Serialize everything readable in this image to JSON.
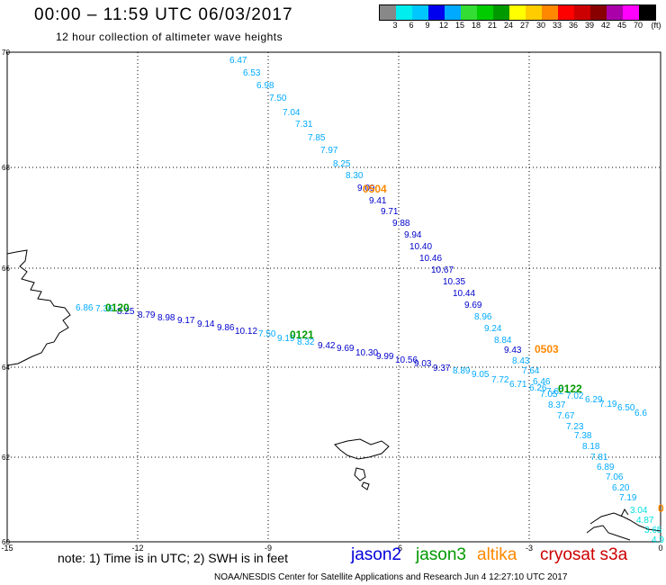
{
  "header": {
    "title": "00:00 – 11:59 UTC 06/03/2017",
    "subtitle": "12 hour collection of altimeter wave heights"
  },
  "legend": {
    "unit": "(ft)",
    "colors": [
      "#888888",
      "#00eeee",
      "#00c8ff",
      "#0000ee",
      "#00aaff",
      "#33dd33",
      "#00cc00",
      "#009900",
      "#ffff00",
      "#ffcc00",
      "#ff8800",
      "#ff0000",
      "#cc0000",
      "#880000",
      "#aa00aa",
      "#ff00ff",
      "#000000"
    ],
    "labels": [
      "3",
      "6",
      "9",
      "12",
      "15",
      "18",
      "21",
      "24",
      "27",
      "30",
      "33",
      "36",
      "39",
      "42",
      "45",
      "70"
    ]
  },
  "map": {
    "y_ticks": [
      "70",
      "68",
      "66",
      "64",
      "62",
      "60"
    ],
    "x_ticks": [
      "-15",
      "-12",
      "-9",
      "-6",
      "-3",
      "0"
    ],
    "tracks": [
      {
        "color": "#00aaff",
        "values": [
          "6.47",
          "6.53",
          "6.98",
          "7.50",
          "7.04",
          "7.31",
          "7.85",
          "7.97",
          "8.25",
          "8.30"
        ]
      },
      {
        "color": "#0000cc",
        "values": [
          "9.09",
          "9.41",
          "9.71",
          "9.88",
          "9.94",
          "10.40",
          "10.46",
          "10.67",
          "10.35",
          "10.44",
          "9.69"
        ]
      },
      {
        "color": "#00aaff",
        "values": [
          "8.96",
          "9.24",
          "8.84"
        ]
      },
      {
        "color": "#0000cc",
        "values": [
          "9.43"
        ]
      },
      {
        "color": "#00aaff",
        "values": [
          "8.43",
          "7.64",
          "6.46",
          "7.05",
          "8.37",
          "7.67",
          "7.23",
          "7.38",
          "8.18",
          "7.81",
          "6.89",
          "7.06",
          "6.20",
          "7.19"
        ]
      },
      {
        "color": "#00e0e0",
        "values": [
          "3.04",
          "4.87",
          "3.65",
          "4.9"
        ]
      },
      {
        "color": "#00aaff",
        "values": [
          "6.86",
          "7.36"
        ]
      },
      {
        "color": "#0000cc",
        "values": [
          "8.25",
          "8.79",
          "8.98",
          "9.17",
          "9.14",
          "9.86",
          "10.12"
        ]
      },
      {
        "color": "#00aaff",
        "values": [
          "7.50",
          "9.19",
          "8.32"
        ]
      },
      {
        "color": "#0000cc",
        "values": [
          "9.42",
          "9.69",
          "10.30",
          "9.99",
          "10.56",
          "9.03",
          "9.37"
        ]
      },
      {
        "color": "#00aaff",
        "values": [
          "8.89",
          "9.05",
          "7.72",
          "6.71",
          "6.26",
          "7.62",
          "7.02",
          "6.29",
          "7.19",
          "6.50",
          "6.6"
        ]
      }
    ],
    "time_labels": [
      {
        "text": "0504",
        "color": "#ff8800"
      },
      {
        "text": "0503",
        "color": "#ff8800"
      },
      {
        "text": "0120",
        "color": "#009900"
      },
      {
        "text": "0121",
        "color": "#009900"
      },
      {
        "text": "0122",
        "color": "#009900"
      },
      {
        "text": "0",
        "color": "#ff8800"
      }
    ]
  },
  "notes": {
    "text": "note:  1) Time is in UTC;  2) SWH is in feet",
    "satellites": [
      {
        "name": "jason2",
        "color": "#0000dd"
      },
      {
        "name": "jason3",
        "color": "#009900"
      },
      {
        "name": "altika",
        "color": "#ff8800"
      },
      {
        "name": "cryosat s3a",
        "color": "#cc0000"
      }
    ]
  },
  "footer": "NOAA/NESDIS Center for Satellite Applications and Research    Jun  4 12:27:10 UTC 2017"
}
